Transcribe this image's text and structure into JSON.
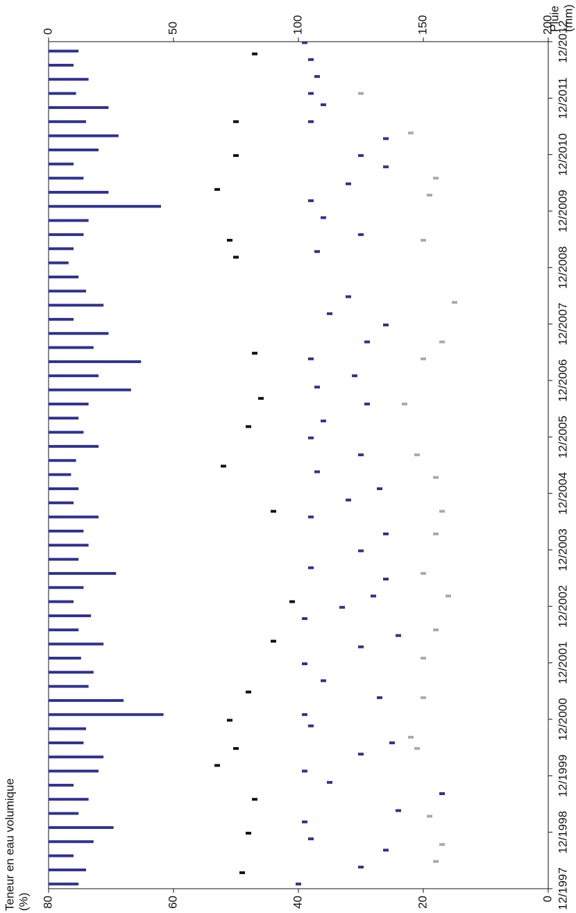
{
  "chart_data": {
    "type": "combo",
    "ylabel": "Teneur en eau volumique",
    "ylabel_unit": "(%)",
    "y2label": "Pluie",
    "y2label_unit": "(mm)",
    "xlim": [
      1997.917,
      2012.917
    ],
    "xticks": [
      {
        "value": 1997.917,
        "label": "12/1997"
      },
      {
        "value": 1998.917,
        "label": "12/1998"
      },
      {
        "value": 1999.917,
        "label": "12/1999"
      },
      {
        "value": 2000.917,
        "label": "12/2000"
      },
      {
        "value": 2001.917,
        "label": "12/2001"
      },
      {
        "value": 2002.917,
        "label": "12/2002"
      },
      {
        "value": 2003.917,
        "label": "12/2003"
      },
      {
        "value": 2004.917,
        "label": "12/2004"
      },
      {
        "value": 2005.917,
        "label": "12/2005"
      },
      {
        "value": 2006.917,
        "label": "12/2006"
      },
      {
        "value": 2007.917,
        "label": "12/2007"
      },
      {
        "value": 2008.917,
        "label": "12/2008"
      },
      {
        "value": 2009.917,
        "label": "12/2009"
      },
      {
        "value": 2010.917,
        "label": "12/2010"
      },
      {
        "value": 2011.917,
        "label": "12/2011"
      },
      {
        "value": 2012.917,
        "label": "12/2012"
      }
    ],
    "ylim": [
      0,
      80
    ],
    "yticks": [
      0,
      20,
      40,
      60,
      80
    ],
    "y2lim": [
      0,
      200
    ],
    "y2ticks": [
      0,
      50,
      100,
      150,
      200
    ],
    "series": [
      {
        "type": "bar",
        "axis": "y2",
        "color": "#2e3192",
        "x": [
          1998.0,
          1998.25,
          1998.5,
          1998.75,
          1999.0,
          1999.25,
          1999.5,
          1999.75,
          2000.0,
          2000.25,
          2000.5,
          2000.75,
          2001.0,
          2001.25,
          2001.5,
          2001.75,
          2002.0,
          2002.25,
          2002.5,
          2002.75,
          2003.0,
          2003.25,
          2003.5,
          2003.75,
          2004.0,
          2004.25,
          2004.5,
          2004.75,
          2005.0,
          2005.25,
          2005.5,
          2005.75,
          2006.0,
          2006.25,
          2006.5,
          2006.75,
          2007.0,
          2007.25,
          2007.5,
          2007.75,
          2008.0,
          2008.25,
          2008.5,
          2008.75,
          2009.0,
          2009.25,
          2009.5,
          2009.75,
          2010.0,
          2010.25,
          2010.5,
          2010.75,
          2011.0,
          2011.25,
          2011.5,
          2011.75,
          2012.0,
          2012.25,
          2012.5,
          2012.75
        ],
        "values": [
          12,
          15,
          10,
          18,
          26,
          12,
          16,
          10,
          20,
          22,
          14,
          15,
          46,
          30,
          16,
          18,
          13,
          22,
          12,
          17,
          10,
          14,
          27,
          12,
          16,
          14,
          20,
          10,
          12,
          9,
          11,
          20,
          14,
          12,
          16,
          33,
          20,
          37,
          18,
          24,
          10,
          22,
          15,
          12,
          8,
          10,
          14,
          16,
          45,
          24,
          14,
          10,
          20,
          28,
          15,
          24,
          11,
          16,
          10,
          12
        ]
      },
      {
        "type": "scatter",
        "color": "#aaaaaa",
        "x": [
          1998.4,
          1998.7,
          1999.2,
          1999.6,
          2000.4,
          2000.6,
          2001.3,
          2002.0,
          2002.5,
          2003.1,
          2003.5,
          2004.2,
          2004.6,
          2005.2,
          2005.6,
          2006.5,
          2007.3,
          2007.6,
          2008.3,
          2009.4,
          2010.2,
          2010.5,
          2011.3,
          2012.0
        ],
        "values": [
          18,
          17,
          19,
          17,
          21,
          22,
          20,
          20,
          18,
          16,
          20,
          18,
          17,
          18,
          21,
          23,
          20,
          17,
          15,
          20,
          19,
          18,
          22,
          30
        ]
      },
      {
        "type": "scatter",
        "color": "#111111",
        "x": [
          1998.2,
          1998.9,
          1999.5,
          2000.1,
          2000.4,
          2000.9,
          2001.4,
          2002.3,
          2003.0,
          2004.6,
          2005.4,
          2006.1,
          2006.6,
          2007.4,
          2009.1,
          2009.4,
          2010.3,
          2010.9,
          2011.5,
          2012.7
        ],
        "values": [
          49,
          48,
          47,
          53,
          50,
          51,
          48,
          44,
          41,
          44,
          52,
          48,
          46,
          47,
          50,
          51,
          53,
          50,
          50,
          47
        ]
      },
      {
        "type": "scatter",
        "color": "#2e3192",
        "x": [
          1998.0,
          1998.3,
          1998.6,
          1998.8,
          1999.1,
          1999.3,
          1999.6,
          1999.8,
          2000.0,
          2000.3,
          2000.5,
          2000.8,
          2001.0,
          2001.3,
          2001.6,
          2001.9,
          2002.2,
          2002.4,
          2002.7,
          2002.9,
          2003.1,
          2003.4,
          2003.6,
          2003.9,
          2004.2,
          2004.5,
          2004.8,
          2005.0,
          2005.3,
          2005.6,
          2005.9,
          2006.2,
          2006.5,
          2006.8,
          2007.0,
          2007.3,
          2007.6,
          2007.9,
          2008.1,
          2008.4,
          2009.2,
          2009.5,
          2009.8,
          2010.1,
          2010.4,
          2010.7,
          2010.9,
          2011.2,
          2011.5,
          2011.8,
          2012.0,
          2012.3,
          2012.6,
          2012.9
        ],
        "values": [
          40,
          30,
          26,
          38,
          39,
          24,
          17,
          35,
          39,
          30,
          25,
          38,
          39,
          27,
          36,
          39,
          30,
          24,
          39,
          33,
          28,
          26,
          38,
          30,
          26,
          38,
          32,
          27,
          37,
          30,
          38,
          36,
          29,
          37,
          31,
          38,
          29,
          26,
          35,
          32,
          37,
          30,
          36,
          38,
          32,
          26,
          30,
          26,
          38,
          36,
          38,
          37,
          38,
          39
        ]
      }
    ]
  }
}
